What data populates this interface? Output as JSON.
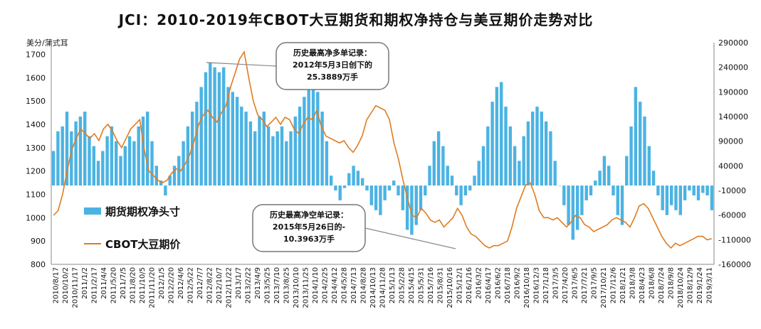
{
  "chart_data": {
    "type": "bar+line",
    "title": "JCI：2010-2019年CBOT大豆期货和期权净持仓与美豆期价走势对比",
    "y_left_label": "美分/蒲式耳",
    "y_left_ticks": [
      "800",
      "900",
      "1000",
      "1100",
      "1200",
      "1300",
      "1400",
      "1500",
      "1600",
      "1700"
    ],
    "y_left_range": [
      800,
      1750
    ],
    "y_right_ticks": [
      "-160000",
      "-110000",
      "-60000",
      "-10000",
      "40000",
      "90000",
      "140000",
      "190000",
      "240000",
      "290000"
    ],
    "y_right_range": [
      -160000,
      290000
    ],
    "x_labels": [
      "2010/8/17",
      "2010/10/2",
      "2010/11/17",
      "2011/1/2",
      "2011/2/17",
      "2011/4/4",
      "2011/5/20",
      "2011/7/5",
      "2011/8/20",
      "2011/10/5",
      "2011/11/20",
      "2012/1/5",
      "2012/2/20",
      "2012/4/6",
      "2012/5/22",
      "2012/7/7",
      "2012/8/22",
      "2012/10/7",
      "2012/11/22",
      "2013/1/7",
      "2013/2/22",
      "2013/4/9",
      "2013/5/25",
      "2013/7/10",
      "2013/8/25",
      "2013/10/10",
      "2013/11/25",
      "2014/1/10",
      "2014/2/25",
      "2014/4/12",
      "2014/5/28",
      "2014/7/13",
      "2014/8/28",
      "2014/10/13",
      "2014/11/28",
      "2015/1/13",
      "2015/2/28",
      "2015/4/15",
      "2015/5/31",
      "2015/7/16",
      "2015/8/31",
      "2015/10/16",
      "2015/12/1",
      "2016/1/16",
      "2016/3/2",
      "2016/4/17",
      "2016/6/2",
      "2016/7/18",
      "2016/9/2",
      "2016/10/18",
      "2016/12/3",
      "2017/1/18",
      "2017/3/5",
      "2017/4/20",
      "2017/6/5",
      "2017/7/21",
      "2017/9/5",
      "2017/10/21",
      "2017/12/6",
      "2018/1/21",
      "2018/3/8",
      "2018/4/23",
      "2018/6/8",
      "2018/7/24",
      "2018/9/8",
      "2018/10/24",
      "2018/12/9",
      "2019/1/24",
      "2019/3/11"
    ],
    "series": [
      {
        "name": "期货期权净头寸",
        "color": "#4bb3e3",
        "axis": "right",
        "values": [
          70000,
          110000,
          120000,
          150000,
          110000,
          130000,
          140000,
          150000,
          100000,
          80000,
          50000,
          70000,
          100000,
          120000,
          90000,
          60000,
          80000,
          100000,
          90000,
          120000,
          140000,
          150000,
          90000,
          40000,
          10000,
          -20000,
          20000,
          40000,
          60000,
          90000,
          120000,
          150000,
          170000,
          200000,
          230000,
          250000,
          240000,
          230000,
          240000,
          200000,
          190000,
          180000,
          160000,
          150000,
          130000,
          110000,
          140000,
          150000,
          120000,
          100000,
          110000,
          120000,
          90000,
          110000,
          140000,
          160000,
          180000,
          200000,
          210000,
          190000,
          150000,
          90000,
          20000,
          -10000,
          -30000,
          -5000,
          25000,
          40000,
          30000,
          15000,
          -10000,
          -40000,
          -50000,
          -60000,
          -30000,
          -10000,
          10000,
          -20000,
          -50000,
          -90000,
          -100000,
          -80000,
          -50000,
          -20000,
          40000,
          90000,
          110000,
          80000,
          40000,
          20000,
          -20000,
          -40000,
          -20000,
          -10000,
          20000,
          50000,
          80000,
          120000,
          170000,
          200000,
          210000,
          160000,
          120000,
          80000,
          50000,
          100000,
          130000,
          150000,
          160000,
          150000,
          130000,
          110000,
          50000,
          0,
          -40000,
          -80000,
          -110000,
          -90000,
          -60000,
          -30000,
          -20000,
          10000,
          30000,
          60000,
          40000,
          -20000,
          -60000,
          -80000,
          60000,
          120000,
          200000,
          170000,
          140000,
          80000,
          30000,
          -20000,
          -50000,
          -60000,
          -40000,
          -50000,
          -60000,
          -30000,
          -10000,
          -20000,
          -30000,
          -15000,
          -20000,
          -50000
        ]
      },
      {
        "name": "CBOT大豆期价",
        "color": "#e07b1f",
        "axis": "left",
        "values": [
          1010,
          1030,
          1100,
          1200,
          1290,
          1340,
          1380,
          1360,
          1340,
          1360,
          1330,
          1380,
          1400,
          1370,
          1330,
          1300,
          1340,
          1380,
          1400,
          1420,
          1290,
          1200,
          1180,
          1160,
          1150,
          1160,
          1190,
          1210,
          1200,
          1230,
          1270,
          1330,
          1400,
          1440,
          1460,
          1430,
          1410,
          1450,
          1480,
          1560,
          1620,
          1680,
          1710,
          1600,
          1500,
          1440,
          1420,
          1390,
          1410,
          1430,
          1400,
          1430,
          1420,
          1380,
          1360,
          1400,
          1430,
          1420,
          1460,
          1390,
          1350,
          1340,
          1330,
          1320,
          1330,
          1300,
          1280,
          1310,
          1350,
          1420,
          1450,
          1480,
          1470,
          1460,
          1420,
          1320,
          1250,
          1160,
          1080,
          1010,
          1000,
          1040,
          1020,
          990,
          980,
          990,
          960,
          980,
          1000,
          1040,
          1010,
          960,
          930,
          920,
          900,
          880,
          870,
          880,
          880,
          890,
          900,
          960,
          1040,
          1090,
          1140,
          1150,
          1100,
          1030,
          1000,
          1000,
          990,
          1000,
          980,
          960,
          980,
          1010,
          1000,
          970,
          960,
          940,
          950,
          960,
          970,
          990,
          1000,
          990,
          980,
          960,
          1000,
          1050,
          1060,
          1040,
          1000,
          960,
          920,
          890,
          870,
          890,
          880,
          890,
          900,
          910,
          920,
          920,
          905,
          910
        ]
      }
    ],
    "legend": [
      "期货期权净头寸",
      "CBOT大豆期价"
    ],
    "annotations": [
      {
        "lines": [
          "历史最高净多单记录：",
          "2012年5月3日创下的",
          "25.3889万手"
        ]
      },
      {
        "lines": [
          "历史最高净空单记录：",
          "2015年5月26日的-",
          "10.3963万手"
        ]
      }
    ],
    "legend_placement": "middle-left",
    "grid": false
  }
}
